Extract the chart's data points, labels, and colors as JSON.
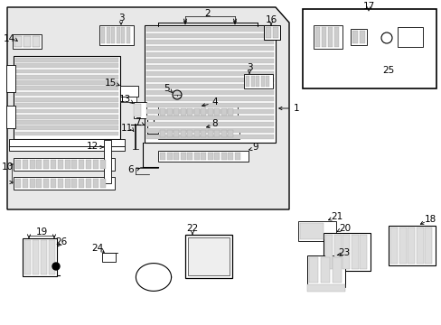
{
  "bg": "#ffffff",
  "main_bg": "#e8e8e8",
  "figsize": [
    4.89,
    3.6
  ],
  "dpi": 100
}
